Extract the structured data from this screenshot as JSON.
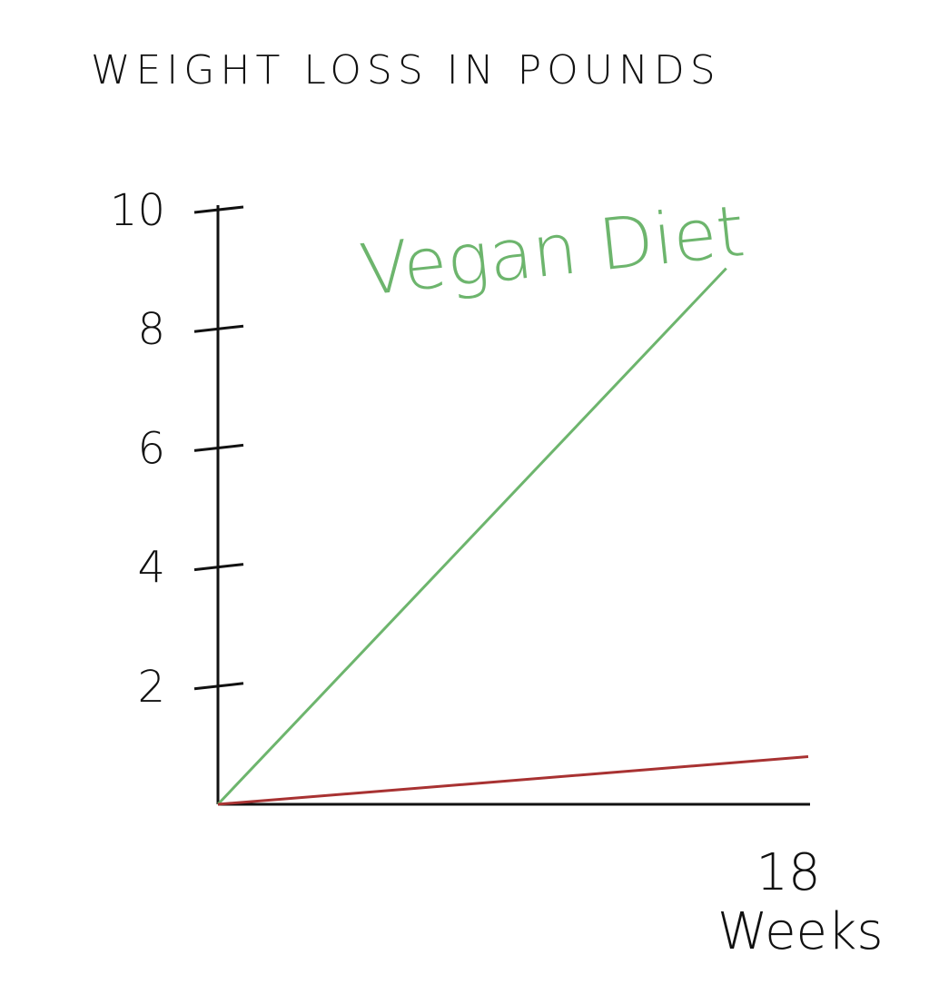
{
  "chart_data": {
    "type": "line",
    "title": "WEIGHT LOSS IN POUNDS",
    "xlabel": "Weeks",
    "ylabel": "",
    "xlim": [
      0,
      18
    ],
    "ylim": [
      0,
      10
    ],
    "y_ticks": [
      2,
      4,
      6,
      8,
      10
    ],
    "x_ticks": [
      18
    ],
    "grid": false,
    "series": [
      {
        "name": "Vegan Diet",
        "color": "#6db56d",
        "points": [
          [
            0,
            0
          ],
          [
            15.5,
            9.0
          ]
        ]
      },
      {
        "name": "",
        "color": "#a83232",
        "points": [
          [
            0,
            0
          ],
          [
            18,
            0.8
          ]
        ]
      }
    ]
  }
}
